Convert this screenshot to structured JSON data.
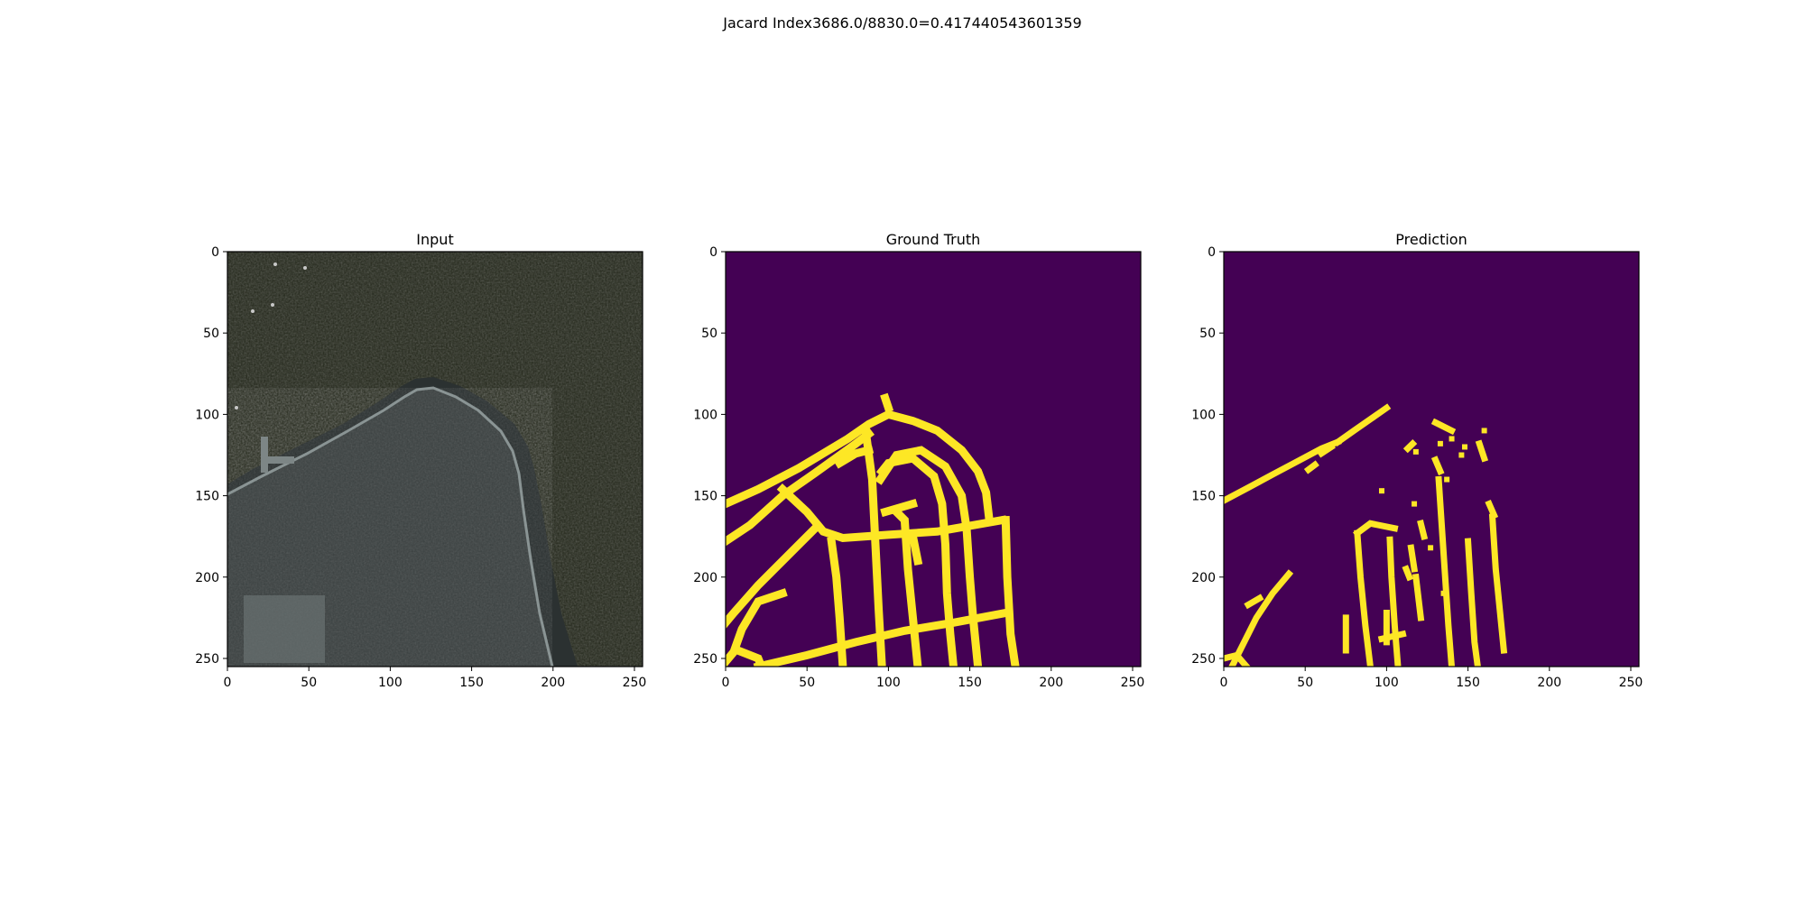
{
  "figure": {
    "suptitle": "Jacard Index3686.0/8830.0=0.417440543601359",
    "background": "#ffffff"
  },
  "colors": {
    "mask_bg": "#440154",
    "mask_fg": "#fde725",
    "water": "#212518",
    "water_alt": "#262a1c",
    "land": "#3a4040",
    "land_light": "#8a9494",
    "shore": "#2b3131"
  },
  "chart_data": [
    {
      "type": "heatmap",
      "title": "Input",
      "content": "satellite-image",
      "x_ticks": [
        0,
        50,
        100,
        150,
        200,
        250
      ],
      "y_ticks": [
        0,
        50,
        100,
        150,
        200,
        250
      ],
      "xlim": [
        0,
        255
      ],
      "ylim": [
        255,
        0
      ]
    },
    {
      "type": "heatmap",
      "title": "Ground Truth",
      "content": "binary-mask",
      "x_ticks": [
        0,
        50,
        100,
        150,
        200,
        250
      ],
      "y_ticks": [
        0,
        50,
        100,
        150,
        200,
        250
      ],
      "xlim": [
        0,
        255
      ],
      "ylim": [
        255,
        0
      ],
      "mask_lines": [
        [
          [
            0,
            155
          ],
          [
            20,
            146
          ],
          [
            45,
            133
          ],
          [
            60,
            124
          ],
          [
            75,
            115
          ],
          [
            88,
            106
          ],
          [
            100,
            100
          ],
          [
            115,
            104
          ],
          [
            130,
            110
          ],
          [
            145,
            122
          ],
          [
            155,
            135
          ],
          [
            160,
            148
          ],
          [
            162,
            165
          ]
        ],
        [
          [
            0,
            178
          ],
          [
            15,
            168
          ],
          [
            35,
            150
          ],
          [
            55,
            136
          ],
          [
            80,
            118
          ],
          [
            88,
            112
          ]
        ],
        [
          [
            35,
            146
          ],
          [
            50,
            160
          ],
          [
            60,
            172
          ],
          [
            72,
            176
          ],
          [
            100,
            174
          ],
          [
            130,
            172
          ],
          [
            170,
            165
          ]
        ],
        [
          [
            55,
            170
          ],
          [
            40,
            185
          ],
          [
            20,
            205
          ],
          [
            5,
            222
          ],
          [
            0,
            228
          ]
        ],
        [
          [
            35,
            210
          ],
          [
            20,
            215
          ],
          [
            10,
            232
          ],
          [
            5,
            246
          ],
          [
            0,
            252
          ]
        ],
        [
          [
            65,
            178
          ],
          [
            68,
            200
          ],
          [
            70,
            225
          ],
          [
            72,
            255
          ]
        ],
        [
          [
            86,
            110
          ],
          [
            90,
            140
          ],
          [
            92,
            180
          ],
          [
            94,
            220
          ],
          [
            96,
            255
          ]
        ],
        [
          [
            95,
            140
          ],
          [
            105,
            125
          ],
          [
            120,
            122
          ],
          [
            135,
            132
          ],
          [
            145,
            150
          ],
          [
            148,
            170
          ],
          [
            150,
            200
          ],
          [
            152,
            225
          ],
          [
            155,
            255
          ]
        ],
        [
          [
            105,
            160
          ],
          [
            110,
            165
          ],
          [
            112,
            195
          ],
          [
            115,
            225
          ],
          [
            118,
            255
          ]
        ],
        [
          [
            96,
            135
          ],
          [
            100,
            130
          ],
          [
            115,
            127
          ],
          [
            128,
            138
          ],
          [
            133,
            155
          ],
          [
            135,
            180
          ],
          [
            136,
            210
          ],
          [
            138,
            235
          ],
          [
            140,
            255
          ]
        ],
        [
          [
            115,
            175
          ],
          [
            118,
            190
          ]
        ],
        [
          [
            98,
            160
          ],
          [
            115,
            155
          ]
        ],
        [
          [
            20,
            255
          ],
          [
            50,
            248
          ],
          [
            80,
            240
          ],
          [
            110,
            233
          ],
          [
            140,
            228
          ],
          [
            172,
            222
          ]
        ],
        [
          [
            172,
            165
          ],
          [
            173,
            200
          ],
          [
            175,
            235
          ],
          [
            178,
            255
          ]
        ],
        [
          [
            10,
            246
          ],
          [
            20,
            250
          ],
          [
            22,
            255
          ]
        ],
        [
          [
            70,
            130
          ],
          [
            80,
            124
          ],
          [
            88,
            122
          ]
        ],
        [
          [
            98,
            90
          ],
          [
            100,
            96
          ]
        ]
      ]
    },
    {
      "type": "heatmap",
      "title": "Prediction",
      "content": "binary-mask",
      "x_ticks": [
        0,
        50,
        100,
        150,
        200,
        250
      ],
      "y_ticks": [
        0,
        50,
        100,
        150,
        200,
        250
      ],
      "xlim": [
        0,
        255
      ],
      "ylim": [
        255,
        0
      ],
      "mask_lines": [
        [
          [
            0,
            153
          ],
          [
            15,
            145
          ],
          [
            30,
            137
          ],
          [
            45,
            129
          ],
          [
            60,
            121
          ],
          [
            70,
            117
          ]
        ],
        [
          [
            70,
            117
          ],
          [
            80,
            110
          ],
          [
            90,
            103
          ],
          [
            100,
            96
          ]
        ],
        [
          [
            60,
            124
          ],
          [
            66,
            120
          ]
        ],
        [
          [
            130,
            105
          ],
          [
            140,
            110
          ]
        ],
        [
          [
            157,
            118
          ],
          [
            160,
            127
          ]
        ],
        [
          [
            82,
            173
          ],
          [
            84,
            200
          ],
          [
            87,
            230
          ],
          [
            90,
            255
          ]
        ],
        [
          [
            82,
            173
          ],
          [
            90,
            167
          ],
          [
            105,
            170
          ]
        ],
        [
          [
            102,
            177
          ],
          [
            103,
            200
          ],
          [
            105,
            230
          ],
          [
            107,
            255
          ]
        ],
        [
          [
            118,
            200
          ],
          [
            121,
            225
          ]
        ],
        [
          [
            115,
            182
          ],
          [
            117,
            195
          ]
        ],
        [
          [
            132,
            140
          ],
          [
            134,
            170
          ],
          [
            136,
            200
          ],
          [
            138,
            230
          ],
          [
            140,
            255
          ]
        ],
        [
          [
            150,
            178
          ],
          [
            152,
            210
          ],
          [
            154,
            240
          ],
          [
            156,
            255
          ]
        ],
        [
          [
            165,
            163
          ],
          [
            167,
            195
          ],
          [
            170,
            225
          ],
          [
            172,
            245
          ]
        ],
        [
          [
            40,
            198
          ],
          [
            30,
            210
          ],
          [
            20,
            225
          ],
          [
            10,
            245
          ],
          [
            5,
            255
          ]
        ],
        [
          [
            0,
            250
          ],
          [
            8,
            248
          ],
          [
            14,
            255
          ]
        ],
        [
          [
            97,
            238
          ],
          [
            110,
            235
          ]
        ],
        [
          [
            112,
            195
          ],
          [
            114,
            200
          ]
        ],
        [
          [
            130,
            128
          ],
          [
            133,
            135
          ]
        ],
        [
          [
            163,
            155
          ],
          [
            166,
            162
          ]
        ],
        [
          [
            15,
            217
          ],
          [
            22,
            213
          ]
        ],
        [
          [
            52,
            134
          ],
          [
            56,
            131
          ]
        ],
        [
          [
            113,
            121
          ],
          [
            116,
            118
          ]
        ],
        [
          [
            100,
            222
          ],
          [
            100,
            240
          ]
        ],
        [
          [
            75,
            225
          ],
          [
            75,
            245
          ]
        ],
        [
          [
            121,
            167
          ],
          [
            123,
            175
          ]
        ]
      ],
      "mask_specks": [
        [
          148,
          120
        ],
        [
          146,
          125
        ],
        [
          133,
          118
        ],
        [
          118,
          123
        ],
        [
          160,
          110
        ],
        [
          137,
          140
        ],
        [
          97,
          147
        ],
        [
          127,
          182
        ],
        [
          117,
          155
        ],
        [
          140,
          115
        ],
        [
          135,
          210
        ]
      ]
    }
  ]
}
